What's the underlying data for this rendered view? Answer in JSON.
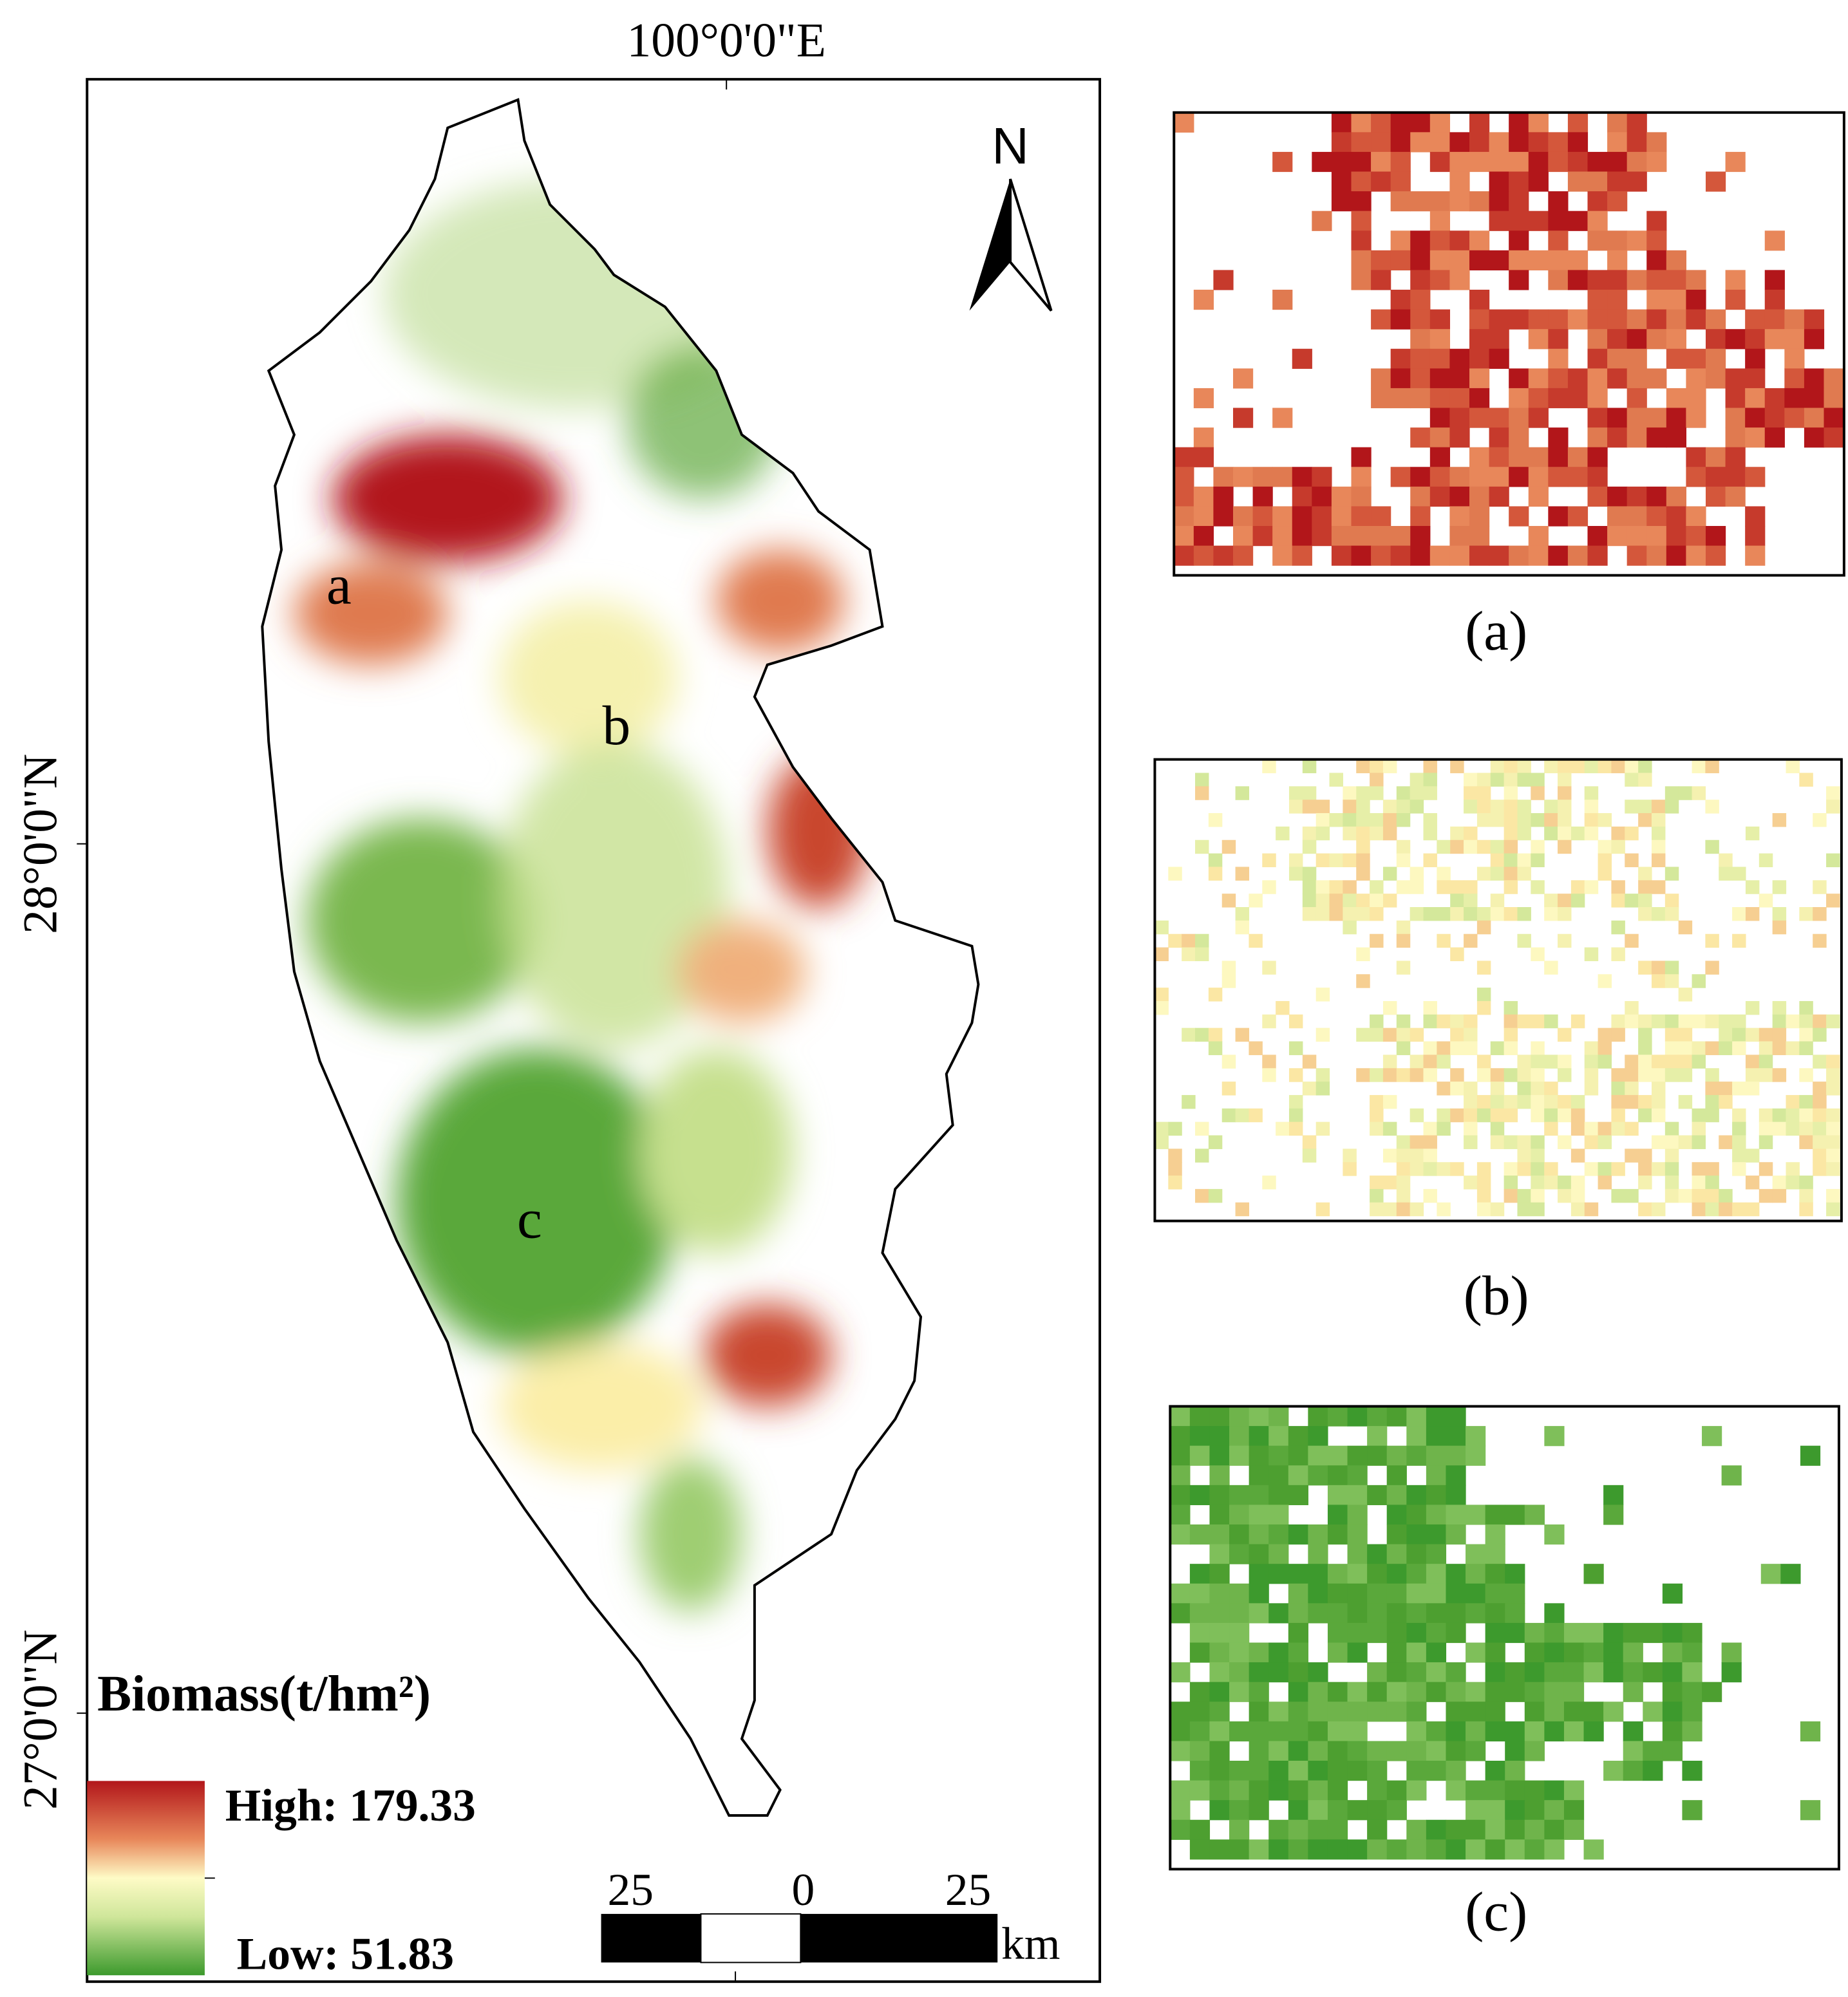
{
  "map": {
    "top_label": "100°0'0\"E",
    "left_labels": [
      "28°0'0\"N",
      "27°0'0\"N"
    ],
    "north": "N",
    "regions": [
      "a",
      "b",
      "c"
    ],
    "legend": {
      "title": "Biomass(t/hm²)",
      "high": "High: 179.33",
      "low": "Low: 51.83"
    },
    "scale_bar": {
      "labels": [
        "25",
        "0",
        "25"
      ],
      "unit": "km"
    }
  },
  "panels": [
    {
      "caption": "(a)"
    },
    {
      "caption": "(b)"
    },
    {
      "caption": "(c)"
    }
  ]
}
